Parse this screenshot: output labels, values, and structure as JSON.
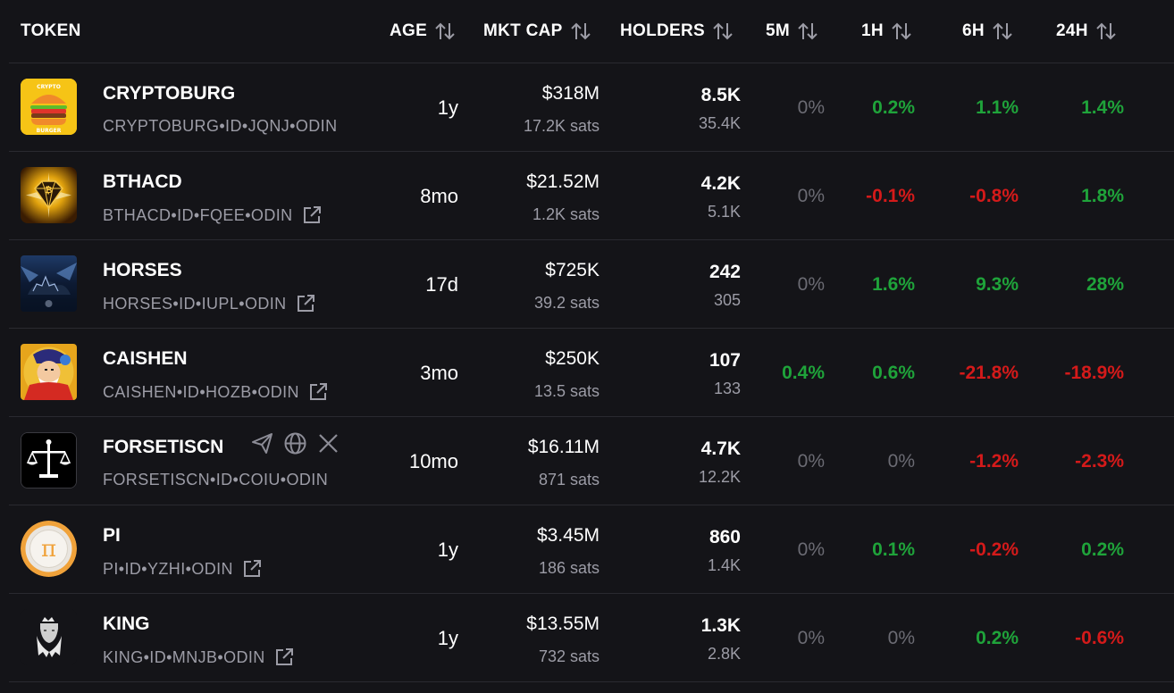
{
  "header": {
    "token": "TOKEN",
    "age": "AGE",
    "mkt_cap": "MKT CAP",
    "holders": "HOLDERS",
    "m5": "5M",
    "h1": "1H",
    "h6": "6H",
    "h24": "24H"
  },
  "rows": [
    {
      "name": "CRYPTOBURG",
      "id": "CRYPTOBURG•ID•JQNJ•ODIN",
      "age": "1y",
      "mcap": "$318M",
      "sats": "17.2K sats",
      "holders": "8.5K",
      "holders_sub": "35.4K",
      "m5": "0%",
      "h1": "0.2%",
      "h6": "1.1%",
      "h24": "1.4%",
      "logo": "burger-logo",
      "has_link": false
    },
    {
      "name": "BTHACD",
      "id": "BTHACD•ID•FQEE•ODIN",
      "age": "8mo",
      "mcap": "$21.52M",
      "sats": "1.2K sats",
      "holders": "4.2K",
      "holders_sub": "5.1K",
      "m5": "0%",
      "h1": "-0.1%",
      "h6": "-0.8%",
      "h24": "1.8%",
      "logo": "diamond-bitcoin-logo",
      "has_link": true
    },
    {
      "name": "HORSES",
      "id": "HORSES•ID•IUPL•ODIN",
      "age": "17d",
      "mcap": "$725K",
      "sats": "39.2 sats",
      "holders": "242",
      "holders_sub": "305",
      "m5": "0%",
      "h1": "1.6%",
      "h6": "9.3%",
      "h24": "28%",
      "logo": "horses-logo",
      "has_link": true
    },
    {
      "name": "CAISHEN",
      "id": "CAISHEN•ID•HOZB•ODIN",
      "age": "3mo",
      "mcap": "$250K",
      "sats": "13.5 sats",
      "holders": "107",
      "holders_sub": "133",
      "m5": "0.4%",
      "h1": "0.6%",
      "h6": "-21.8%",
      "h24": "-18.9%",
      "logo": "caishen-logo",
      "has_link": true
    },
    {
      "name": "FORSETISCN",
      "id": "FORSETISCN•ID•COIU•ODIN",
      "age": "10mo",
      "mcap": "$16.11M",
      "sats": "871 sats",
      "holders": "4.7K",
      "holders_sub": "12.2K",
      "m5": "0%",
      "h1": "0%",
      "h6": "-1.2%",
      "h24": "-2.3%",
      "logo": "scales-logo",
      "has_link": false
    },
    {
      "name": "PI",
      "id": "PI•ID•YZHI•ODIN",
      "age": "1y",
      "mcap": "$3.45M",
      "sats": "186 sats",
      "holders": "860",
      "holders_sub": "1.4K",
      "m5": "0%",
      "h1": "0.1%",
      "h6": "-0.2%",
      "h24": "0.2%",
      "logo": "pi-logo",
      "has_link": true
    },
    {
      "name": "KING",
      "id": "KING•ID•MNJB•ODIN",
      "age": "1y",
      "mcap": "$13.55M",
      "sats": "732 sats",
      "holders": "1.3K",
      "holders_sub": "2.8K",
      "m5": "0%",
      "h1": "0%",
      "h6": "0.2%",
      "h24": "-0.6%",
      "logo": "king-logo",
      "has_link": true
    }
  ],
  "colors": {
    "positive": "#1fa33a",
    "negative": "#d41a1a",
    "zero": "#6b6b73",
    "background": "#141418"
  }
}
